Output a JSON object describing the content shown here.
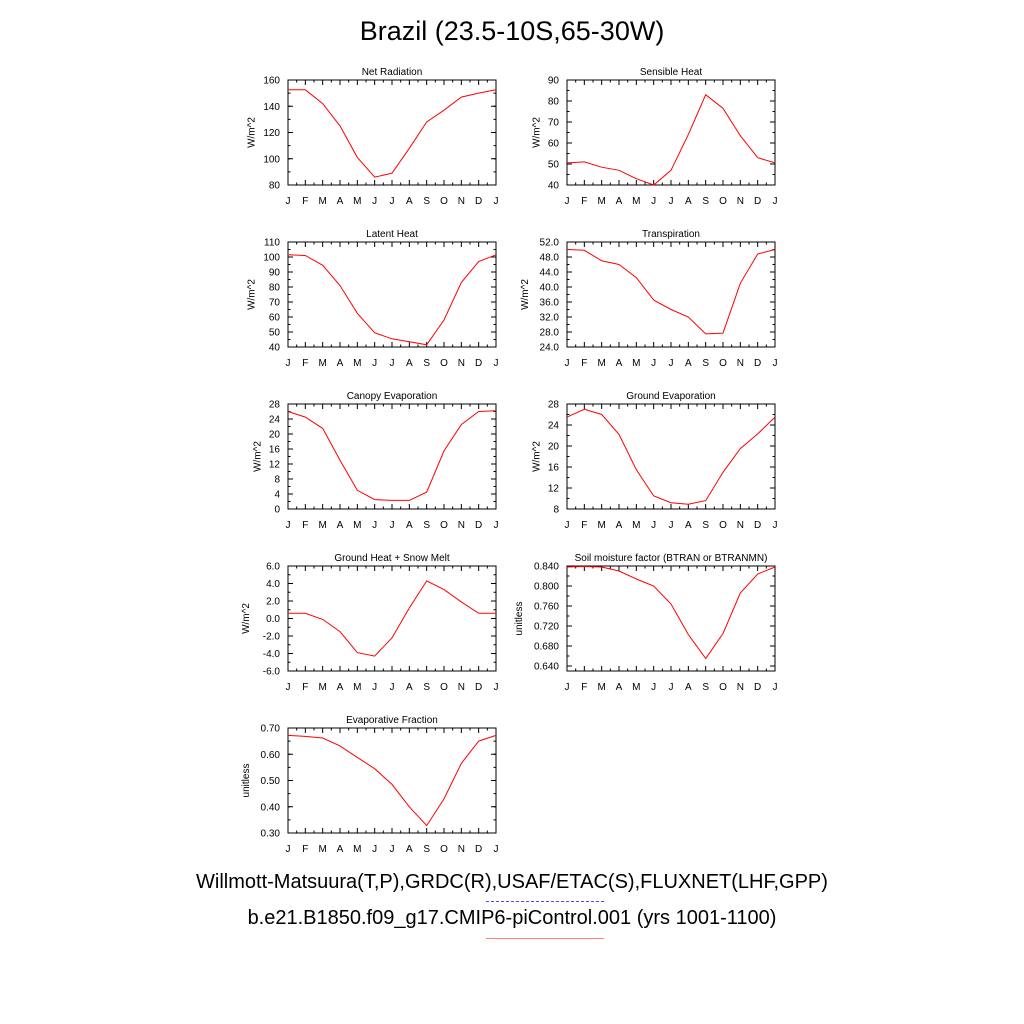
{
  "title": "Brazil (23.5-10S,65-30W)",
  "months": [
    "J",
    "F",
    "M",
    "A",
    "M",
    "J",
    "J",
    "A",
    "S",
    "O",
    "N",
    "D",
    "J"
  ],
  "line_color": "#ff0000",
  "ref_line_color": "#4b4bff",
  "chart_data": [
    {
      "type": "line",
      "title": "Net Radiation",
      "ylabel": "W/m^2",
      "ylim": [
        80,
        160
      ],
      "yticks": [
        80,
        100,
        120,
        140,
        160
      ],
      "ytick_labels": [
        "80",
        "100",
        "120",
        "140",
        "160"
      ],
      "minor": 2,
      "values": [
        152.5,
        152.5,
        142,
        125,
        101,
        86,
        89,
        108,
        128,
        137,
        147,
        150,
        152.5
      ]
    },
    {
      "type": "line",
      "title": "Sensible Heat",
      "ylabel": "W/m^2",
      "ylim": [
        40,
        90
      ],
      "yticks": [
        40,
        50,
        60,
        70,
        80,
        90
      ],
      "ytick_labels": [
        "40",
        "50",
        "60",
        "70",
        "80",
        "90"
      ],
      "minor": 2,
      "values": [
        50.5,
        51,
        48.5,
        47,
        43,
        40,
        47,
        64,
        83,
        76.5,
        63.5,
        53,
        50.5
      ]
    },
    {
      "type": "line",
      "title": "Latent Heat",
      "ylabel": "W/m^2",
      "ylim": [
        40,
        110
      ],
      "yticks": [
        40,
        50,
        60,
        70,
        80,
        90,
        100,
        110
      ],
      "ytick_labels": [
        "40",
        "50",
        "60",
        "70",
        "80",
        "90",
        "100",
        "110"
      ],
      "minor": 2,
      "values": [
        101.5,
        101,
        94.5,
        81,
        62.5,
        49.5,
        45.5,
        43.5,
        41.5,
        58,
        83,
        97,
        101.5
      ]
    },
    {
      "type": "line",
      "title": "Transpiration",
      "ylabel": "W/m^2",
      "ylim": [
        24,
        52
      ],
      "yticks": [
        24,
        28,
        32,
        36,
        40,
        44,
        48,
        52
      ],
      "ytick_labels": [
        "24.0",
        "28.0",
        "32.0",
        "36.0",
        "40.0",
        "44.0",
        "48.0",
        "52.0"
      ],
      "minor": 2,
      "values": [
        50,
        49.8,
        47,
        46,
        42.5,
        36.5,
        34,
        32,
        27.5,
        27.7,
        41,
        48.8,
        50
      ]
    },
    {
      "type": "line",
      "title": "Canopy Evaporation",
      "ylabel": "W/m^2",
      "ylim": [
        0,
        28
      ],
      "yticks": [
        0,
        4,
        8,
        12,
        16,
        20,
        24,
        28
      ],
      "ytick_labels": [
        "0",
        "4",
        "8",
        "12",
        "16",
        "20",
        "24",
        "28"
      ],
      "minor": 2,
      "values": [
        26,
        24.5,
        21.5,
        13,
        5,
        2.5,
        2.3,
        2.3,
        4.5,
        15.5,
        22.5,
        26,
        26.2
      ]
    },
    {
      "type": "line",
      "title": "Ground Evaporation",
      "ylabel": "W/m^2",
      "ylim": [
        8,
        28
      ],
      "yticks": [
        8,
        12,
        16,
        20,
        24,
        28
      ],
      "ytick_labels": [
        "8",
        "12",
        "16",
        "20",
        "24",
        "28"
      ],
      "minor": 2,
      "values": [
        25.5,
        27,
        26,
        22.2,
        15.5,
        10.5,
        9.2,
        8.9,
        9.6,
        15,
        19.5,
        22.3,
        25.5
      ]
    },
    {
      "type": "line",
      "title": "Ground Heat + Snow Melt",
      "ylabel": "W/m^2",
      "ylim": [
        -6,
        6
      ],
      "yticks": [
        -6,
        -4,
        -2,
        0,
        2,
        4,
        6
      ],
      "ytick_labels": [
        "-6.0",
        "-4.0",
        "-2.0",
        "0.0",
        "2.0",
        "4.0",
        "6.0"
      ],
      "minor": 2,
      "values": [
        0.6,
        0.6,
        -0.1,
        -1.5,
        -3.9,
        -4.3,
        -2.2,
        1.2,
        4.3,
        3.3,
        1.9,
        0.6,
        0.6
      ]
    },
    {
      "type": "line",
      "title": "Soil moisture factor (BTRAN or BTRANMN)",
      "ylabel": "unitless",
      "ylim": [
        0.63,
        0.84
      ],
      "yticks": [
        0.64,
        0.68,
        0.72,
        0.76,
        0.8,
        0.84
      ],
      "ytick_labels": [
        "0.640",
        "0.680",
        "0.720",
        "0.760",
        "0.800",
        "0.840"
      ],
      "minor": 2,
      "values": [
        0.838,
        0.839,
        0.838,
        0.83,
        0.814,
        0.8,
        0.764,
        0.703,
        0.655,
        0.705,
        0.786,
        0.824,
        0.838
      ]
    },
    {
      "type": "line",
      "title": "Evaporative Fraction",
      "ylabel": "unitless",
      "ylim": [
        0.3,
        0.7
      ],
      "yticks": [
        0.3,
        0.4,
        0.5,
        0.6,
        0.7
      ],
      "ytick_labels": [
        "0.30",
        "0.40",
        "0.50",
        "0.60",
        "0.70"
      ],
      "minor": 2,
      "values": [
        0.672,
        0.668,
        0.662,
        0.632,
        0.588,
        0.545,
        0.485,
        0.4,
        0.328,
        0.43,
        0.565,
        0.65,
        0.672
      ]
    }
  ],
  "captions": {
    "obs": "Willmott-Matsuura(T,P),GRDC(R),USAF/ETAC(S),FLUXNET(LHF,GPP)",
    "model": "b.e21.B1850.f09_g17.CMIP6-piControl.001 (yrs 1001-1100)"
  }
}
